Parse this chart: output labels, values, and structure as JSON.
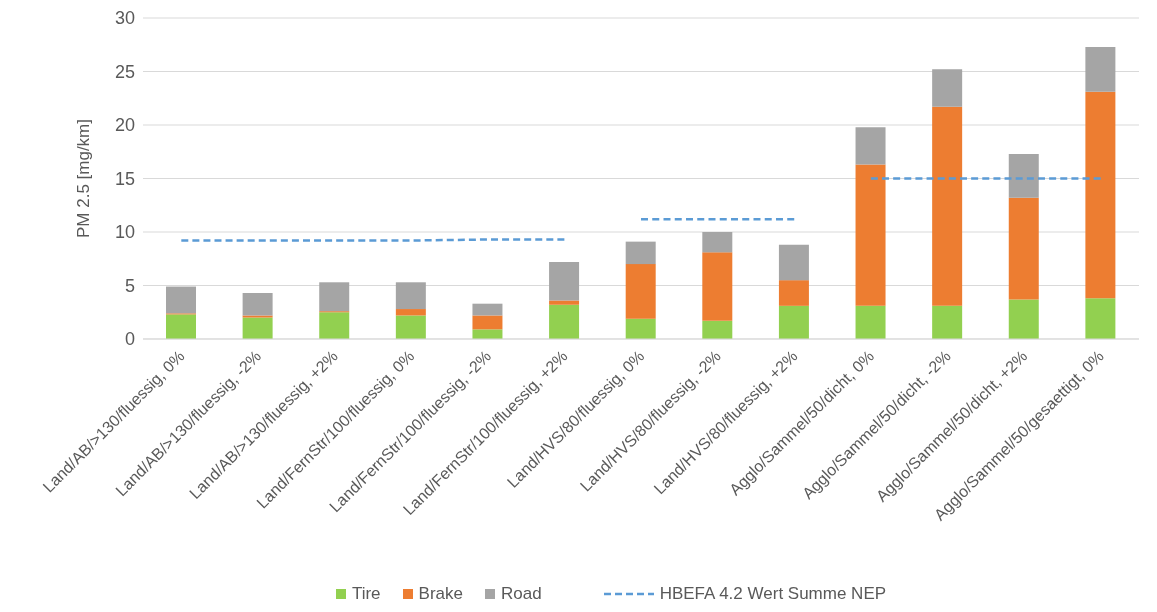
{
  "chart_data": {
    "type": "bar",
    "stacked": true,
    "ylabel": "PM 2.5 [mg/km]",
    "categories": [
      "Land/AB/>130/fluessig, 0%",
      "Land/AB/>130/fluessig, -2%",
      "Land/AB/>130/fluessig, +2%",
      "Land/FernStr/100/fluessig, 0%",
      "Land/FernStr/100/fluessig, -2%",
      "Land/FernStr/100/fluessig, +2%",
      "Land/HVS/80/fluessig, 0%",
      "Land/HVS/80/fluessig, -2%",
      "Land/HVS/80/fluessig, +2%",
      "Agglo/Sammel/50/dicht, 0%",
      "Agglo/Sammel/50/dicht, -2%",
      "Agglo/Sammel/50/dicht, +2%",
      "Agglo/Sammel/50/gesaettigt, 0%"
    ],
    "series": [
      {
        "name": "Tire",
        "color": "#92d050",
        "values": [
          2.3,
          2.0,
          2.5,
          2.2,
          0.9,
          3.2,
          1.9,
          1.7,
          3.1,
          3.1,
          3.1,
          3.7,
          3.8
        ]
      },
      {
        "name": "Brake",
        "color": "#ed7d31",
        "values": [
          0.1,
          0.2,
          0.1,
          0.6,
          1.3,
          0.4,
          5.1,
          6.4,
          2.4,
          13.2,
          18.6,
          9.5,
          19.3
        ]
      },
      {
        "name": "Road",
        "color": "#a5a5a5",
        "values": [
          2.5,
          2.1,
          2.7,
          2.5,
          1.1,
          3.6,
          2.1,
          1.9,
          3.3,
          3.5,
          3.5,
          4.1,
          4.2
        ]
      },
      {
        "name": "HBEFA 4.2 Wert Summe NEP",
        "type": "line",
        "line_style": "dashed",
        "marker": "none",
        "color": "#5b9bd5",
        "values": [
          9.2,
          9.2,
          9.2,
          9.2,
          9.3,
          9.3,
          null,
          null,
          null,
          null,
          null,
          null,
          null
        ]
      },
      {
        "type": "line",
        "line_style": "dashed",
        "marker": "none",
        "color": "#5b9bd5",
        "values": [
          null,
          null,
          null,
          null,
          null,
          null,
          11.2,
          11.2,
          11.2,
          null,
          null,
          null,
          null
        ]
      },
      {
        "type": "line",
        "line_style": "dashed",
        "marker": "none",
        "color": "#5b9bd5",
        "values": [
          null,
          null,
          null,
          null,
          null,
          null,
          null,
          null,
          null,
          15.0,
          15.0,
          15.0,
          15.0
        ]
      }
    ],
    "ylim": [
      0,
      30
    ],
    "yticks": [
      0,
      5,
      10,
      15,
      20,
      25,
      30
    ],
    "grid": "y",
    "legend": "bottom"
  }
}
